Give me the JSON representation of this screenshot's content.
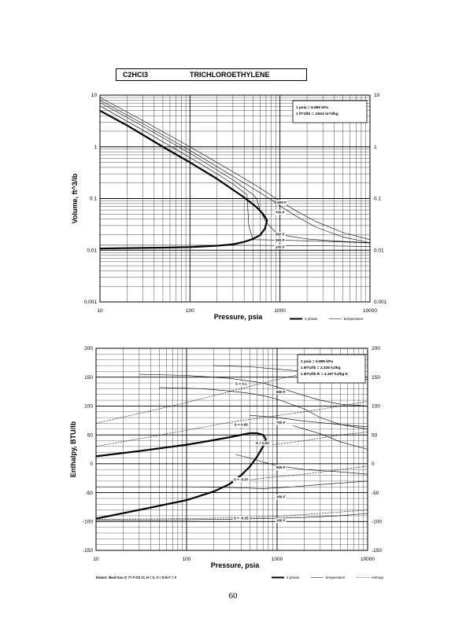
{
  "header": {
    "formula": "C2HCl3",
    "name": "TRICHLOROETHYLENE"
  },
  "page_number": "60",
  "chart_data": [
    {
      "type": "line",
      "title": "",
      "xlabel": "Pressure,  psia",
      "ylabel": "Volume, ft^3/lb",
      "xscale": "log",
      "yscale": "log",
      "xlim": [
        10,
        10000
      ],
      "ylim": [
        0.001,
        10
      ],
      "grid": true,
      "x_tick_labels": [
        "10",
        "100",
        "1000",
        "10000"
      ],
      "y_tick_labels": [
        "0.001",
        "0.01",
        "0.1",
        "1",
        "10"
      ],
      "y_tick_labels_right": [
        "0.001",
        "0.01",
        "0.1",
        "1",
        "10"
      ],
      "x_ticks": [
        10,
        100,
        1000,
        10000
      ],
      "y_ticks": [
        0.001,
        0.01,
        0.1,
        1,
        10
      ],
      "note_lines": [
        "1 psia  =  6.895 kPa",
        "1 ft^3/lb  =  .0624 m^3/kg"
      ],
      "legend_position": "bottom-right",
      "legend": [
        {
          "label": "2 phase",
          "style": "thick"
        },
        {
          "label": "temperature",
          "style": "thin"
        }
      ],
      "series": [
        {
          "style": "thick",
          "points": [
            [
              10,
              5
            ],
            [
              20,
              2.6
            ],
            [
              50,
              1.0
            ],
            [
              100,
              0.5
            ],
            [
              200,
              0.24
            ],
            [
              400,
              0.105
            ],
            [
              550,
              0.068
            ],
            [
              650,
              0.05
            ],
            [
              720,
              0.038
            ]
          ]
        },
        {
          "style": "thick",
          "points": [
            [
              10,
              0.0108
            ],
            [
              50,
              0.0112
            ],
            [
              100,
              0.0115
            ],
            [
              200,
              0.0122
            ],
            [
              300,
              0.013
            ],
            [
              400,
              0.0145
            ],
            [
              500,
              0.0165
            ],
            [
              600,
              0.0195
            ],
            [
              680,
              0.026
            ],
            [
              720,
              0.038
            ]
          ]
        },
        {
          "name": "600 F",
          "style": "thin",
          "points": [
            [
              10,
              9
            ],
            [
              30,
              3.2
            ],
            [
              100,
              1.0
            ],
            [
              300,
              0.33
            ],
            [
              600,
              0.16
            ],
            [
              800,
              0.115
            ],
            [
              1000,
              0.09
            ],
            [
              1500,
              0.058
            ],
            [
              2500,
              0.036
            ],
            [
              5000,
              0.022
            ],
            [
              10000,
              0.016
            ]
          ]
        },
        {
          "name": "700 F",
          "style": "thin",
          "points": [
            [
              10,
              8
            ],
            [
              30,
              2.8
            ],
            [
              100,
              0.85
            ],
            [
              300,
              0.27
            ],
            [
              600,
              0.13
            ],
            [
              800,
              0.095
            ],
            [
              1000,
              0.072
            ],
            [
              1500,
              0.046
            ],
            [
              2500,
              0.028
            ],
            [
              5000,
              0.018
            ],
            [
              10000,
              0.014
            ]
          ]
        },
        {
          "name": "500 F",
          "style": "thin",
          "points": [
            [
              10,
              7.2
            ],
            [
              30,
              2.5
            ],
            [
              100,
              0.75
            ],
            [
              300,
              0.23
            ],
            [
              500,
              0.12
            ],
            [
              550,
              0.1
            ],
            [
              600,
              0.06
            ],
            [
              700,
              0.035
            ],
            [
              900,
              0.022
            ],
            [
              1200,
              0.019
            ],
            [
              2000,
              0.0165
            ],
            [
              5000,
              0.0148
            ],
            [
              10000,
              0.014
            ]
          ]
        },
        {
          "name": "300 F",
          "style": "thin",
          "points": [
            [
              10,
              6.2
            ],
            [
              30,
              2.1
            ],
            [
              100,
              0.62
            ],
            [
              200,
              0.3
            ],
            [
              300,
              0.19
            ],
            [
              400,
              0.13
            ],
            [
              430,
              0.12
            ],
            [
              450,
              0.03
            ],
            [
              500,
              0.016
            ],
            [
              800,
              0.0158
            ],
            [
              2000,
              0.0152
            ],
            [
              5000,
              0.0145
            ],
            [
              10000,
              0.0138
            ]
          ]
        },
        {
          "name": "100 F",
          "style": "thin",
          "points": [
            [
              10,
              0.0125
            ],
            [
              100,
              0.0125
            ],
            [
              500,
              0.0124
            ],
            [
              1000,
              0.0123
            ],
            [
              3000,
              0.0122
            ],
            [
              10000,
              0.0118
            ]
          ]
        }
      ],
      "curve_labels": [
        {
          "text": "600 F",
          "x": 1050,
          "y": 0.085
        },
        {
          "text": "700 F",
          "x": 1000,
          "y": 0.055
        },
        {
          "text": "500 F",
          "x": 1000,
          "y": 0.0205
        },
        {
          "text": "300 F",
          "x": 1000,
          "y": 0.0158
        },
        {
          "text": "100 F",
          "x": 1000,
          "y": 0.0118
        }
      ]
    },
    {
      "type": "line",
      "title": "",
      "xlabel": "Pressure,  psia",
      "ylabel": "Enthalpy, BTU/lb",
      "xscale": "log",
      "yscale": "linear",
      "xlim": [
        10,
        10000
      ],
      "ylim": [
        -150,
        200
      ],
      "grid": true,
      "x_tick_labels": [
        "10",
        "100",
        "1000",
        "10000"
      ],
      "y_tick_labels": [
        "200",
        "150",
        "100",
        "50",
        "0",
        "-50",
        "-100",
        "-150"
      ],
      "y_tick_labels_right": [
        "200",
        "150",
        "100",
        "50",
        "0",
        "-50",
        "-100",
        "-150"
      ],
      "x_ticks": [
        10,
        100,
        1000,
        10000
      ],
      "y_ticks": [
        200,
        150,
        100,
        50,
        0,
        -50,
        -100,
        -150
      ],
      "note_lines": [
        "1 psia  =  6.895 kPa",
        "1 BTU/lb  =  2.326 kJ/kg",
        "1 BTU/lb R  =  4.187 kJ/kg K"
      ],
      "reference_note": "Datum: Ideal Gas @ 77 F OS Cl,  H = 0,  S = 8 lb F = 0",
      "legend_position": "bottom-right",
      "legend": [
        {
          "label": "2 phase",
          "style": "thick"
        },
        {
          "label": "temperature",
          "style": "thin"
        },
        {
          "label": "entropy",
          "style": "dashed"
        }
      ],
      "series": [
        {
          "style": "thick",
          "points": [
            [
              10,
              13
            ],
            [
              30,
              22
            ],
            [
              100,
              33
            ],
            [
              200,
              41
            ],
            [
              300,
              46
            ],
            [
              400,
              50
            ],
            [
              500,
              53
            ],
            [
              600,
              53
            ],
            [
              700,
              50
            ],
            [
              750,
              43
            ],
            [
              730,
              36
            ]
          ]
        },
        {
          "style": "thick",
          "points": [
            [
              10,
              -95
            ],
            [
              30,
              -80
            ],
            [
              100,
              -63
            ],
            [
              200,
              -48
            ],
            [
              300,
              -35
            ],
            [
              400,
              -20
            ],
            [
              500,
              -5
            ],
            [
              600,
              12
            ],
            [
              700,
              30
            ],
            [
              730,
              36
            ]
          ]
        },
        {
          "name": "300 F",
          "style": "thin",
          "points": [
            [
              10,
              -98
            ],
            [
              100,
              -97
            ],
            [
              300,
              -96
            ],
            [
              700,
              -95
            ],
            [
              2000,
              -93
            ],
            [
              5000,
              -90
            ],
            [
              10000,
              -86
            ]
          ]
        },
        {
          "name": "300 F",
          "style": "thin",
          "points": [
            [
              10,
              -40
            ],
            [
              100,
              -40
            ],
            [
              300,
              -41
            ],
            [
              700,
              -43
            ],
            [
              1500,
              -40
            ],
            [
              3000,
              -36
            ],
            [
              10000,
              -30
            ]
          ]
        },
        {
          "name": "500 F",
          "style": "thin",
          "points": [
            [
              350,
              16
            ],
            [
              500,
              10
            ],
            [
              700,
              3
            ],
            [
              1000,
              -3
            ],
            [
              2000,
              -10
            ],
            [
              5000,
              -14
            ],
            [
              10000,
              -18
            ]
          ]
        },
        {
          "name": "500 F",
          "style": "thin",
          "points": [
            [
              50,
              132
            ],
            [
              150,
              130
            ],
            [
              300,
              126
            ],
            [
              500,
              122
            ],
            [
              700,
              118
            ],
            [
              1000,
              112
            ],
            [
              2000,
              95
            ],
            [
              3000,
              80
            ],
            [
              5000,
              68
            ],
            [
              10000,
              64
            ]
          ]
        },
        {
          "name": "700 F",
          "style": "thin",
          "points": [
            [
              30,
              155
            ],
            [
              100,
              153
            ],
            [
              300,
              148
            ],
            [
              700,
              140
            ],
            [
              1000,
              133
            ],
            [
              2000,
              118
            ],
            [
              3000,
              110
            ],
            [
              5000,
              103
            ],
            [
              10000,
              100
            ]
          ]
        },
        {
          "style": "thin",
          "points": [
            [
              200,
              170
            ],
            [
              500,
              168
            ],
            [
              1000,
              164
            ],
            [
              2000,
              160
            ],
            [
              5000,
              153
            ],
            [
              10000,
              146
            ]
          ]
        },
        {
          "style": "thin",
          "points": [
            [
              500,
              84
            ],
            [
              1000,
              80
            ],
            [
              2000,
              74
            ],
            [
              5000,
              68
            ],
            [
              10000,
              60
            ]
          ]
        },
        {
          "style": "thin",
          "points": [
            [
              1500,
              66
            ],
            [
              3000,
              52
            ],
            [
              5000,
              38
            ],
            [
              10000,
              25
            ]
          ]
        },
        {
          "name": "S=0.1",
          "style": "dashed",
          "points": [
            [
              10,
              70
            ],
            [
              100,
              106
            ],
            [
              300,
              125
            ],
            [
              700,
              140
            ],
            [
              2000,
              157
            ],
            [
              5000,
              175
            ],
            [
              10000,
              190
            ]
          ]
        },
        {
          "name": "S=0.05",
          "style": "dashed",
          "points": [
            [
              10,
              30
            ],
            [
              100,
              58
            ],
            [
              300,
              72
            ],
            [
              700,
              80
            ],
            [
              2000,
              90
            ],
            [
              5000,
              100
            ],
            [
              10000,
              108
            ]
          ]
        },
        {
          "name": "S=0.01",
          "style": "dashed",
          "points": [
            [
              900,
              33
            ],
            [
              2000,
              40
            ],
            [
              5000,
              50
            ],
            [
              10000,
              55
            ]
          ]
        },
        {
          "name": "S=-0.07",
          "style": "dashed",
          "points": [
            [
              400,
              -30
            ],
            [
              700,
              -25
            ],
            [
              2000,
              -18
            ],
            [
              5000,
              -10
            ],
            [
              10000,
              -4
            ]
          ]
        },
        {
          "name": "S=-0.15",
          "style": "dashed",
          "points": [
            [
              10,
              -96
            ],
            [
              100,
              -95
            ],
            [
              500,
              -93
            ],
            [
              1000,
              -91
            ],
            [
              3000,
              -86
            ],
            [
              10000,
              -80
            ]
          ]
        }
      ],
      "curve_labels": [
        {
          "text": "S = 0.1",
          "x": 400,
          "y": 139
        },
        {
          "text": "S = 0.05",
          "x": 400,
          "y": 68
        },
        {
          "text": "S = 0.01",
          "x": 690,
          "y": 36
        },
        {
          "text": "S = -0.07",
          "x": 400,
          "y": -27
        },
        {
          "text": "S = -0.15",
          "x": 400,
          "y": -94
        },
        {
          "text": "500 F",
          "x": 1100,
          "y": 125
        },
        {
          "text": "700 F",
          "x": 1100,
          "y": 72
        },
        {
          "text": "500 F",
          "x": 1100,
          "y": -6
        },
        {
          "text": "300 F",
          "x": 1100,
          "y": -57
        },
        {
          "text": "100 F",
          "x": 1100,
          "y": -98
        }
      ]
    }
  ]
}
